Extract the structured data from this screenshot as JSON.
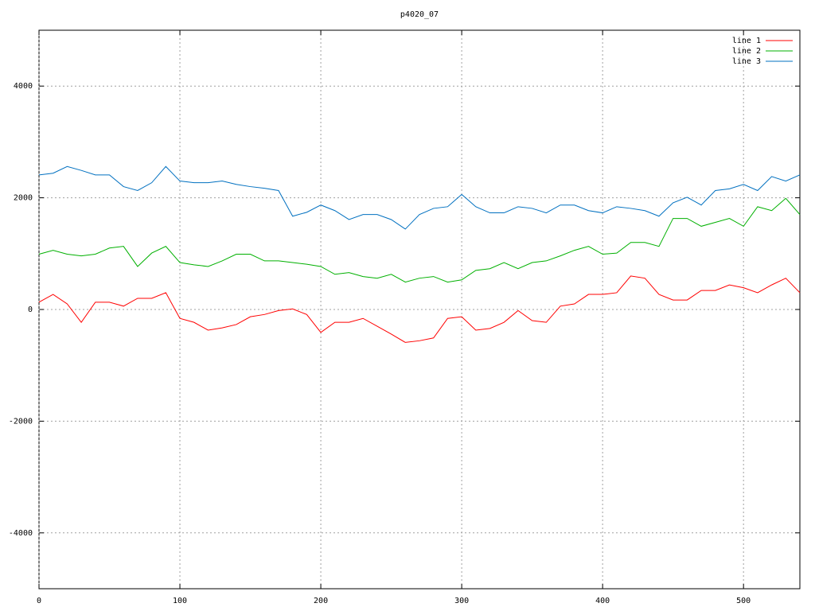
{
  "chart_data": {
    "type": "line",
    "title": "p4020_07",
    "x": [
      0,
      10,
      20,
      30,
      40,
      50,
      60,
      70,
      80,
      90,
      100,
      110,
      120,
      130,
      140,
      150,
      160,
      170,
      180,
      190,
      200,
      210,
      220,
      230,
      240,
      250,
      260,
      270,
      280,
      290,
      300,
      310,
      320,
      330,
      340,
      350,
      360,
      370,
      380,
      390,
      400,
      410,
      420,
      430,
      440,
      450,
      460,
      470,
      480,
      490,
      500,
      510,
      520,
      530,
      540
    ],
    "series": [
      {
        "name": "line 1",
        "color": "#ff0000",
        "values": [
          130,
          270,
          100,
          -230,
          130,
          130,
          60,
          200,
          200,
          300,
          -160,
          -230,
          -370,
          -330,
          -270,
          -130,
          -90,
          -20,
          10,
          -90,
          -410,
          -230,
          -230,
          -160,
          -300,
          -440,
          -590,
          -560,
          -510,
          -160,
          -130,
          -370,
          -340,
          -230,
          -20,
          -200,
          -230,
          60,
          100,
          270,
          270,
          300,
          600,
          560,
          270,
          170,
          170,
          340,
          340,
          440,
          390,
          300,
          440,
          560,
          300
        ]
      },
      {
        "name": "line 2",
        "color": "#00b000",
        "values": [
          990,
          1060,
          990,
          960,
          990,
          1100,
          1130,
          770,
          1010,
          1130,
          840,
          800,
          770,
          870,
          990,
          990,
          870,
          870,
          840,
          810,
          770,
          630,
          660,
          590,
          560,
          630,
          490,
          560,
          590,
          490,
          530,
          700,
          730,
          840,
          730,
          840,
          870,
          960,
          1060,
          1130,
          990,
          1010,
          1200,
          1200,
          1130,
          1630,
          1630,
          1490,
          1560,
          1630,
          1490,
          1840,
          1770,
          1990,
          1700
        ]
      },
      {
        "name": "line 3",
        "color": "#0070c0",
        "values": [
          2410,
          2440,
          2560,
          2490,
          2410,
          2410,
          2200,
          2130,
          2270,
          2560,
          2300,
          2270,
          2270,
          2300,
          2240,
          2200,
          2170,
          2130,
          1670,
          1740,
          1870,
          1770,
          1610,
          1700,
          1700,
          1610,
          1440,
          1700,
          1810,
          1840,
          2060,
          1840,
          1730,
          1730,
          1840,
          1810,
          1730,
          1870,
          1870,
          1770,
          1730,
          1840,
          1810,
          1770,
          1670,
          1910,
          2010,
          1870,
          2130,
          2160,
          2240,
          2130,
          2380,
          2300,
          2410
        ]
      }
    ],
    "xlim": [
      0,
      540
    ],
    "xticks": [
      0,
      100,
      200,
      300,
      400,
      500
    ],
    "ylim": [
      -5000,
      5000
    ],
    "yticks": [
      -4000,
      -2000,
      0,
      2000,
      4000
    ],
    "grid": true,
    "legend": "top-right"
  }
}
